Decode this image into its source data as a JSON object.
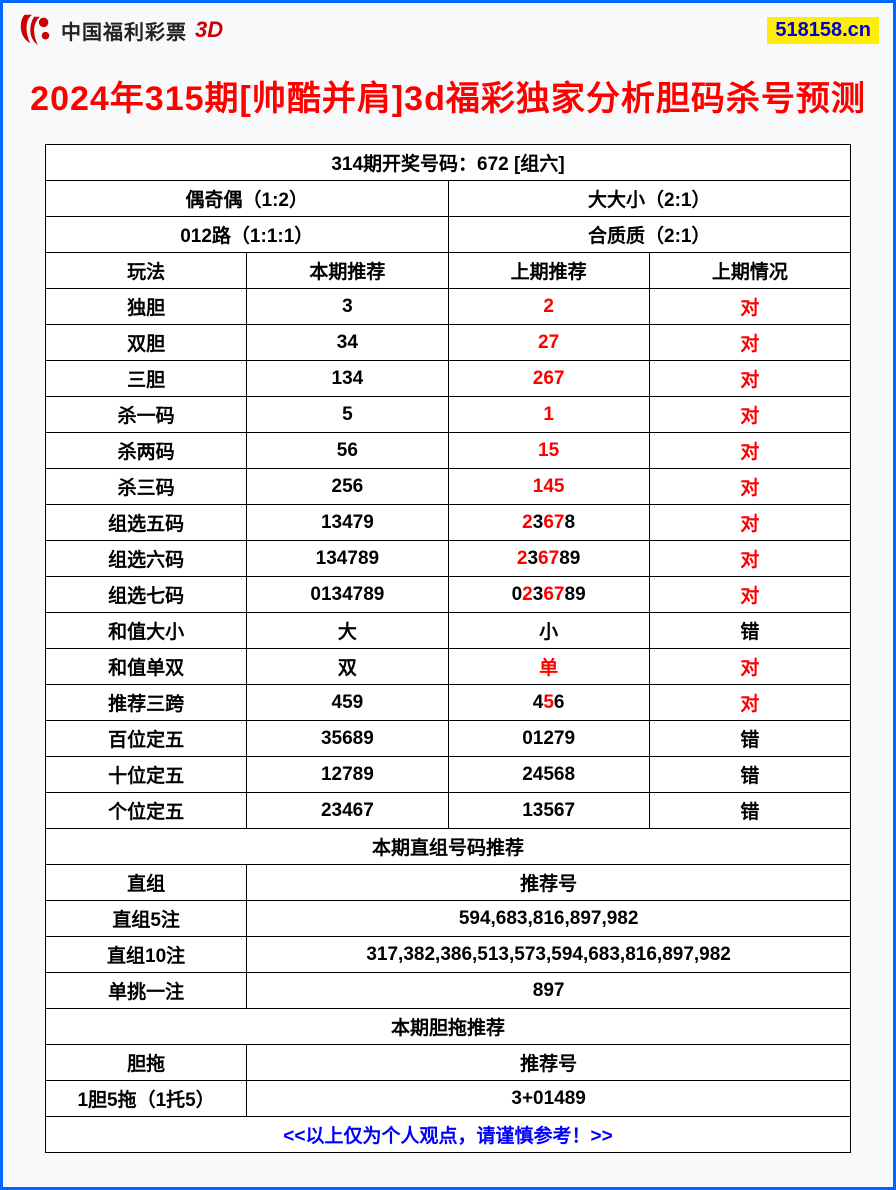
{
  "header": {
    "brand": "中国福利彩票",
    "brand_suffix": "3D",
    "site": "518158.cn"
  },
  "title": "2024年315期[帅酷并肩]3d福彩独家分析胆码杀号预测",
  "draw_header": "314期开奖号码：672 [组六]",
  "summary": {
    "top_left": "偶奇偶（1:2）",
    "top_right": "大大小（2:1）",
    "bot_left": "012路（1:1:1）",
    "bot_right": "合质质（2:1）"
  },
  "columns": {
    "c1": "玩法",
    "c2": "本期推荐",
    "c3": "上期推荐",
    "c4": "上期情况"
  },
  "rows": [
    {
      "name": "独胆",
      "cur": "3",
      "prev": "2",
      "prev_red": true,
      "result": "对",
      "result_red": true
    },
    {
      "name": "双胆",
      "cur": "34",
      "prev": "27",
      "prev_mix": [
        [
          "r",
          "2"
        ],
        [
          "r",
          "7"
        ]
      ],
      "result": "对",
      "result_red": true
    },
    {
      "name": "三胆",
      "cur": "134",
      "prev": "267",
      "prev_mix": [
        [
          "r",
          "2"
        ],
        [
          "r",
          "6"
        ],
        [
          "r",
          "7"
        ]
      ],
      "result": "对",
      "result_red": true
    },
    {
      "name": "杀一码",
      "cur": "5",
      "prev": "1",
      "prev_red": true,
      "result": "对",
      "result_red": true
    },
    {
      "name": "杀两码",
      "cur": "56",
      "prev": "15",
      "prev_red": true,
      "result": "对",
      "result_red": true
    },
    {
      "name": "杀三码",
      "cur": "256",
      "prev": "145",
      "prev_red": true,
      "result": "对",
      "result_red": true
    },
    {
      "name": "组选五码",
      "cur": "13479",
      "prev_mix": [
        [
          "r",
          "2"
        ],
        [
          "k",
          "3"
        ],
        [
          "r",
          "6"
        ],
        [
          "r",
          "7"
        ],
        [
          "k",
          "8"
        ]
      ],
      "result": "对",
      "result_red": true
    },
    {
      "name": "组选六码",
      "cur": "134789",
      "prev_mix": [
        [
          "r",
          "2"
        ],
        [
          "k",
          "3"
        ],
        [
          "r",
          "6"
        ],
        [
          "r",
          "7"
        ],
        [
          "k",
          "8"
        ],
        [
          "k",
          "9"
        ]
      ],
      "result": "对",
      "result_red": true
    },
    {
      "name": "组选七码",
      "cur": "0134789",
      "prev_mix": [
        [
          "k",
          "0"
        ],
        [
          "r",
          "2"
        ],
        [
          "k",
          "3"
        ],
        [
          "r",
          "6"
        ],
        [
          "r",
          "7"
        ],
        [
          "k",
          "8"
        ],
        [
          "k",
          "9"
        ]
      ],
      "result": "对",
      "result_red": true
    },
    {
      "name": "和值大小",
      "cur": "大",
      "prev": "小",
      "prev_red": false,
      "result": "错",
      "result_red": false
    },
    {
      "name": "和值单双",
      "cur": "双",
      "prev": "单",
      "prev_red": true,
      "result": "对",
      "result_red": true
    },
    {
      "name": "推荐三跨",
      "cur": "459",
      "prev_mix": [
        [
          "k",
          "4"
        ],
        [
          "r",
          "5"
        ],
        [
          "k",
          "6"
        ]
      ],
      "result": "对",
      "result_red": true
    },
    {
      "name": "百位定五",
      "cur": "35689",
      "prev": "01279",
      "prev_red": false,
      "result": "错",
      "result_red": false
    },
    {
      "name": "十位定五",
      "cur": "12789",
      "prev": "24568",
      "prev_red": false,
      "result": "错",
      "result_red": false
    },
    {
      "name": "个位定五",
      "cur": "23467",
      "prev": "13567",
      "prev_red": false,
      "result": "错",
      "result_red": false
    }
  ],
  "section2_header": "本期直组号码推荐",
  "section2_cols": {
    "c1": "直组",
    "c2": "推荐号"
  },
  "section2_rows": [
    {
      "name": "直组5注",
      "val": "594,683,816,897,982"
    },
    {
      "name": "直组10注",
      "val": "317,382,386,513,573,594,683,816,897,982"
    },
    {
      "name": "单挑一注",
      "val": "897"
    }
  ],
  "section3_header": "本期胆拖推荐",
  "section3_cols": {
    "c1": "胆拖",
    "c2": "推荐号"
  },
  "section3_rows": [
    {
      "name": "1胆5拖（1托5）",
      "val": "3+01489"
    }
  ],
  "footer": "<<以上仅为个人观点，请谨慎参考！>>"
}
